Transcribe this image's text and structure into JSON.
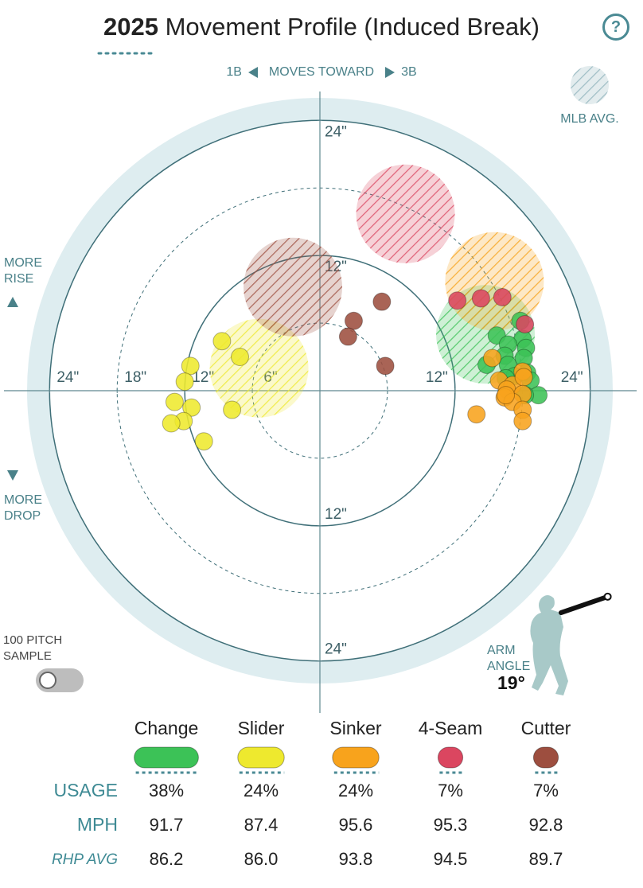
{
  "header": {
    "year": "2025",
    "title": "Movement Profile (Induced Break)",
    "help": "?"
  },
  "chart_data": {
    "type": "scatter",
    "x_label_left": "1B",
    "x_label": "MOVES TOWARD",
    "x_label_right": "3B",
    "y_label_top": "MORE RISE",
    "y_label_bottom": "MORE DROP",
    "legend_label": "MLB AVG.",
    "xlim": [
      -26,
      26
    ],
    "ylim": [
      -26,
      26
    ],
    "rings": [
      12,
      24
    ],
    "dashed_rings": [
      6,
      18
    ],
    "xticks": [
      {
        "value": -24,
        "label": "24\""
      },
      {
        "value": -18,
        "label": "18\""
      },
      {
        "value": -12,
        "label": "12\""
      },
      {
        "value": -6,
        "label": "6\""
      },
      {
        "value": 12,
        "label": "12\""
      },
      {
        "value": 24,
        "label": "24\""
      }
    ],
    "yticks": [
      {
        "value": 24,
        "label": "24\""
      },
      {
        "value": 12,
        "label": "12\""
      },
      {
        "value": -12,
        "label": "12\""
      },
      {
        "value": -24,
        "label": "24\""
      }
    ],
    "series": [
      {
        "name": "Change",
        "color": "#3cc257",
        "usage": 38,
        "usage_label": "38%",
        "mph": "91.7",
        "rhp_avg": "86.2",
        "mlb_avg": [
          14.7,
          5.0
        ],
        "x": [
          17.8,
          15.7,
          18.0,
          16.7,
          18.3,
          16.4,
          14.8,
          16.7,
          18.1,
          18.4,
          17.3,
          16.5,
          18.7,
          19.4,
          18.2
        ],
        "values": [
          6.2,
          4.9,
          4.6,
          4.1,
          3.8,
          3.1,
          2.3,
          2.3,
          2.9,
          1.6,
          1.3,
          1.1,
          0.9,
          -0.4,
          -0.4
        ]
      },
      {
        "name": "Slider",
        "color": "#eee92e",
        "usage": 24,
        "usage_label": "24%",
        "mph": "87.4",
        "rhp_avg": "86.0",
        "mlb_avg": [
          -5.4,
          2.0
        ],
        "x": [
          -8.7,
          -7.1,
          -11.5,
          -12.0,
          -12.9,
          -11.4,
          -7.8,
          -12.1,
          -13.2,
          -10.3
        ],
        "values": [
          4.4,
          3.0,
          2.2,
          0.8,
          -1.0,
          -1.5,
          -1.7,
          -2.7,
          -2.9,
          -4.5
        ]
      },
      {
        "name": "Sinker",
        "color": "#f8a31c",
        "usage": 24,
        "usage_label": "24%",
        "mph": "95.6",
        "rhp_avg": "93.8",
        "mlb_avg": [
          15.5,
          9.7
        ],
        "x": [
          15.3,
          18.0,
          15.9,
          17.1,
          16.6,
          18.1,
          18.0,
          16.4,
          17.1,
          18.0,
          13.9,
          18.0,
          16.5
        ],
        "values": [
          2.9,
          1.7,
          0.9,
          0.5,
          0.1,
          1.2,
          -0.3,
          -0.6,
          -1.0,
          -1.7,
          -2.1,
          -2.7,
          -0.4
        ]
      },
      {
        "name": "4-Seam",
        "color": "#db4660",
        "usage": 7,
        "usage_label": "7%",
        "mph": "95.3",
        "rhp_avg": "94.5",
        "mlb_avg": [
          7.6,
          15.7
        ],
        "x": [
          12.2,
          14.3,
          16.2,
          18.2
        ],
        "values": [
          8.0,
          8.2,
          8.3,
          5.9
        ]
      },
      {
        "name": "Cutter",
        "color": "#9d4e3f",
        "usage": 7,
        "usage_label": "7%",
        "mph": "92.8",
        "rhp_avg": "89.7",
        "mlb_avg": [
          -2.4,
          9.2
        ],
        "x": [
          5.5,
          3.0,
          2.5,
          5.8
        ],
        "values": [
          7.9,
          6.2,
          4.8,
          2.2
        ]
      }
    ],
    "arm_angle": {
      "label": "ARM ANGLE",
      "value": 19,
      "value_label": "19°"
    },
    "sample_toggle": {
      "label": "100 PITCH SAMPLE"
    }
  },
  "table": {
    "row_labels": [
      "USAGE",
      "MPH",
      "RHP AVG"
    ]
  }
}
